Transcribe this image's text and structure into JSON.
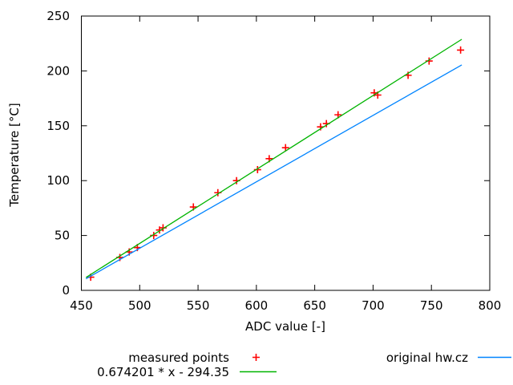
{
  "figure": {
    "background": "#ffffff",
    "axis_color": "#000000",
    "text_color": "#000000"
  },
  "chart_data": {
    "type": "scatter",
    "title": "",
    "xlabel": "ADC value [-]",
    "ylabel": "Temperature [°C]",
    "xlim": [
      450,
      800
    ],
    "ylim": [
      0,
      250
    ],
    "xticks": [
      450,
      500,
      550,
      600,
      650,
      700,
      750,
      800
    ],
    "yticks": [
      0,
      50,
      100,
      150,
      200,
      250
    ],
    "grid": false,
    "legend_position": "below-plot",
    "series": [
      {
        "name": "measured points",
        "type": "points",
        "marker": "plus",
        "color": "#ff0000",
        "points": [
          [
            458,
            12
          ],
          [
            483,
            30
          ],
          [
            491,
            35
          ],
          [
            498,
            39
          ],
          [
            512,
            50
          ],
          [
            517,
            55
          ],
          [
            520,
            57
          ],
          [
            546,
            76
          ],
          [
            567,
            89
          ],
          [
            583,
            100
          ],
          [
            601,
            110
          ],
          [
            611,
            120
          ],
          [
            625,
            130
          ],
          [
            655,
            149
          ],
          [
            660,
            152
          ],
          [
            670,
            160
          ],
          [
            701,
            180
          ],
          [
            704,
            178
          ],
          [
            730,
            196
          ],
          [
            748,
            209
          ],
          [
            775,
            219
          ]
        ]
      },
      {
        "name": "0.674201 * x - 294.35",
        "type": "line",
        "color": "#00b400",
        "slope": 0.674201,
        "intercept": -294.35,
        "x_range": [
          454,
          776
        ]
      },
      {
        "name": "original hw.cz",
        "type": "line",
        "color": "#0084ff",
        "points": [
          [
            454,
            10.5
          ],
          [
            776,
            205.5
          ]
        ]
      }
    ]
  }
}
